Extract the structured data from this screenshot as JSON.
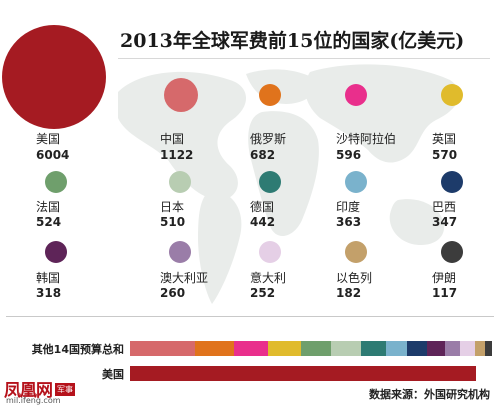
{
  "title": "2013年全球军费前15位的国家(亿美元)",
  "chart_data": {
    "type": "bubble",
    "title": "2013年全球军费前15位的国家(亿美元)",
    "unit": "亿美元",
    "items": [
      {
        "name": "美国",
        "value": 6004,
        "color": "#a51b22"
      },
      {
        "name": "中国",
        "value": 1122,
        "color": "#d6696b"
      },
      {
        "name": "俄罗斯",
        "value": 682,
        "color": "#e0731c"
      },
      {
        "name": "沙特阿拉伯",
        "value": 596,
        "color": "#e92f8c"
      },
      {
        "name": "英国",
        "value": 570,
        "color": "#e0bb2c"
      },
      {
        "name": "法国",
        "value": 524,
        "color": "#6f9f6c"
      },
      {
        "name": "日本",
        "value": 510,
        "color": "#b8cdb2"
      },
      {
        "name": "德国",
        "value": 442,
        "color": "#2e7b73"
      },
      {
        "name": "印度",
        "value": 363,
        "color": "#7ab2cc"
      },
      {
        "name": "巴西",
        "value": 347,
        "color": "#1d3b6a"
      },
      {
        "name": "韩国",
        "value": 318,
        "color": "#5e2458"
      },
      {
        "name": "澳大利亚",
        "value": 260,
        "color": "#9a7da8"
      },
      {
        "name": "意大利",
        "value": 252,
        "color": "#e5cfe6"
      },
      {
        "name": "以色列",
        "value": 182,
        "color": "#c3a06a"
      },
      {
        "name": "伊朗",
        "value": 117,
        "color": "#3c3c3c"
      }
    ],
    "bars": [
      {
        "label": "其他14国预算总和",
        "stacked": true
      },
      {
        "label": "美国",
        "value": 6004,
        "color": "#a51b22"
      }
    ]
  },
  "source": "数据来源：外国研究机构",
  "logo": {
    "text": "凤凰网",
    "badge": "军事",
    "url": "mil.ifeng.com"
  }
}
